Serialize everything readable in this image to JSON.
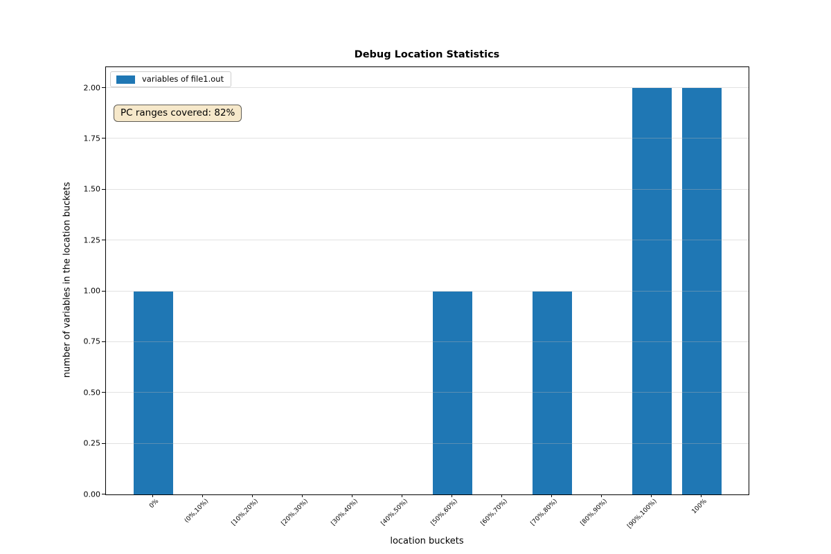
{
  "figure": {
    "title": "Debug Location Statistics",
    "xlabel": "location buckets",
    "ylabel": "number of variables in the location buckets"
  },
  "legend": {
    "label": "variables of file1.out"
  },
  "annotation": {
    "text": "PC ranges covered: 82%"
  },
  "chart_data": {
    "type": "bar",
    "title": "Debug Location Statistics",
    "xlabel": "location buckets",
    "ylabel": "number of variables in the location buckets",
    "categories": [
      "0%",
      "(0%,10%)",
      "[10%,20%)",
      "[20%,30%)",
      "[30%,40%)",
      "[40%,50%)",
      "[50%,60%)",
      "[60%,70%)",
      "[70%,80%)",
      "[80%,90%)",
      "[90%,100%)",
      "100%"
    ],
    "series": [
      {
        "name": "variables of file1.out",
        "values": [
          1,
          0,
          0,
          0,
          0,
          0,
          1,
          0,
          1,
          0,
          2,
          2
        ]
      }
    ],
    "bar_color": "#1f77b4",
    "ytick_labels": [
      "0.00",
      "0.25",
      "0.50",
      "0.75",
      "1.00",
      "1.25",
      "1.50",
      "1.75",
      "2.00"
    ],
    "ytick_values": [
      0,
      0.25,
      0.5,
      0.75,
      1,
      1.25,
      1.5,
      1.75,
      2
    ],
    "ylim": [
      0,
      2.1
    ],
    "grid": "horizontal",
    "legend_position": "upper left",
    "annotation": "PC ranges covered: 82%",
    "annotation_facecolor": "#f6e8ca"
  }
}
